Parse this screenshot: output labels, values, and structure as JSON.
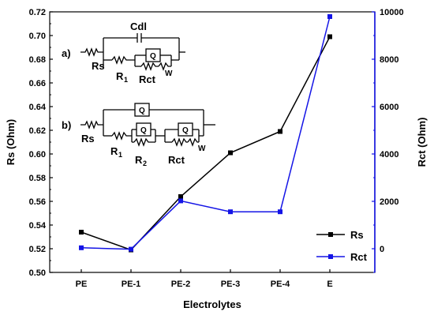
{
  "chart_data": {
    "type": "line",
    "categories": [
      "PE",
      "PE-1",
      "PE-2",
      "PE-3",
      "PE-4",
      "E"
    ],
    "xlabel": "Electrolytes",
    "ylabel_left": "Rs (Ohm)",
    "ylabel_right": "Rct (Ohm)",
    "ylim_left": [
      0.5,
      0.72
    ],
    "ylim_right": [
      -1000,
      10000
    ],
    "yticks_left": [
      "0.50",
      "0.52",
      "0.54",
      "0.56",
      "0.58",
      "0.60",
      "0.62",
      "0.64",
      "0.66",
      "0.68",
      "0.70",
      "0.72"
    ],
    "yticks_right": [
      "0",
      "2000",
      "4000",
      "6000",
      "8000",
      "10000"
    ],
    "series": [
      {
        "name": "Rs",
        "axis": "left",
        "color": "#000000",
        "marker": "square",
        "values": [
          0.534,
          0.519,
          0.564,
          0.601,
          0.619,
          0.699
        ]
      },
      {
        "name": "Rct",
        "axis": "right",
        "color": "#1414e6",
        "marker": "square",
        "values": [
          40,
          -20,
          2020,
          1560,
          1560,
          9800
        ]
      }
    ],
    "legend_position": "bottom-right",
    "grid": false
  },
  "circuits": {
    "a": {
      "label": "a)",
      "cdl": "Cdl",
      "q": "Q",
      "rs": "Rs",
      "r1": "R",
      "r1_sub": "1",
      "rct": "Rct",
      "w": "W"
    },
    "b": {
      "label": "b)",
      "q": "Q",
      "rs": "Rs",
      "r1": "R",
      "r1_sub": "1",
      "r2": "R",
      "r2_sub": "2",
      "rct": "Rct",
      "w": "W"
    }
  }
}
